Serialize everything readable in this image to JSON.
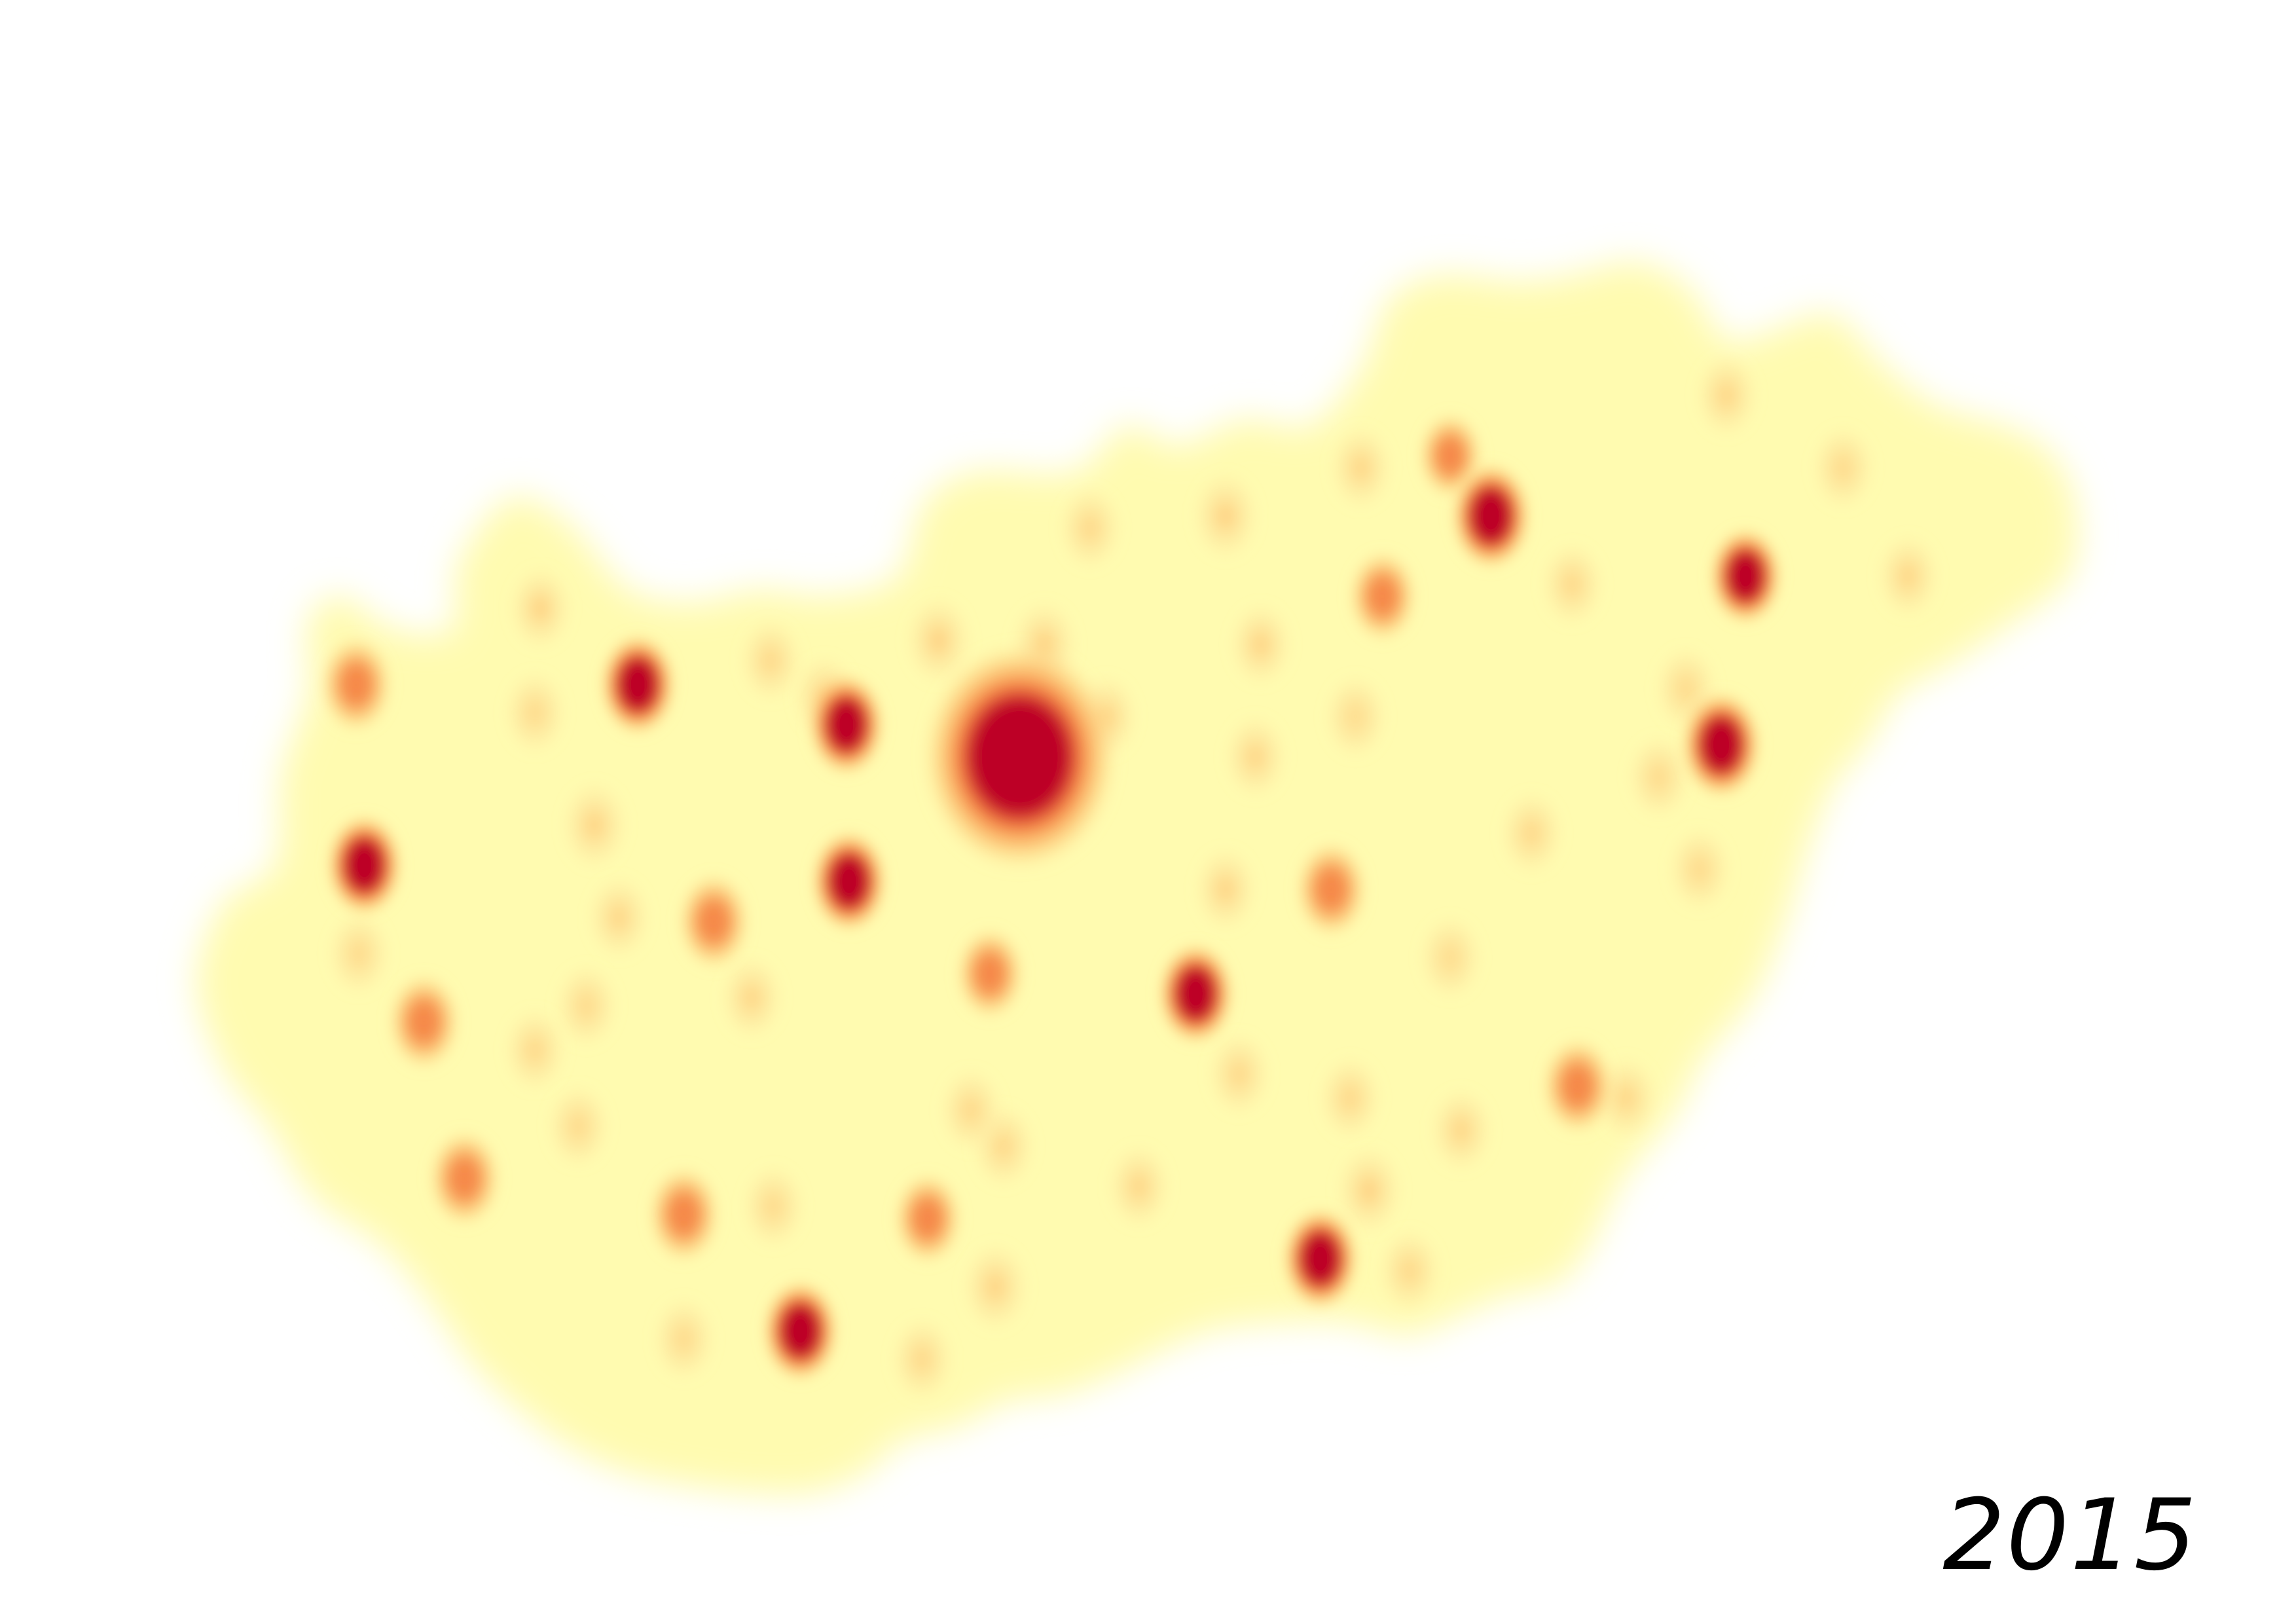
{
  "map": {
    "year": "2015",
    "colors": {
      "background": "#ffffff",
      "base": "#fffbb0",
      "low": "#fde29a",
      "mid": "#fdb663",
      "high": "#f47a3a",
      "peak": "#bd0026"
    },
    "hotspots": [
      {
        "id": "budapest",
        "lon": 19.04,
        "lat": 47.5,
        "intensity": 1.0,
        "size": 2.2
      },
      {
        "id": "gyor",
        "lon": 17.63,
        "lat": 47.68,
        "intensity": 0.95,
        "size": 1.0
      },
      {
        "id": "tatabanya",
        "lon": 18.4,
        "lat": 47.58,
        "intensity": 0.85,
        "size": 1.0
      },
      {
        "id": "szekesfehervar",
        "lon": 18.41,
        "lat": 47.19,
        "intensity": 0.95,
        "size": 1.0
      },
      {
        "id": "miskolc",
        "lon": 20.78,
        "lat": 48.1,
        "intensity": 0.95,
        "size": 1.05
      },
      {
        "id": "nyiregyhaza",
        "lon": 21.72,
        "lat": 47.95,
        "intensity": 0.95,
        "size": 0.95
      },
      {
        "id": "debrecen",
        "lon": 21.63,
        "lat": 47.53,
        "intensity": 0.95,
        "size": 1.05
      },
      {
        "id": "kecskemet",
        "lon": 19.69,
        "lat": 46.91,
        "intensity": 0.95,
        "size": 1.0
      },
      {
        "id": "szeged",
        "lon": 20.15,
        "lat": 46.25,
        "intensity": 0.95,
        "size": 1.0
      },
      {
        "id": "pecs",
        "lon": 18.23,
        "lat": 46.07,
        "intensity": 0.95,
        "size": 1.0
      },
      {
        "id": "sopron",
        "lon": 16.59,
        "lat": 47.68,
        "intensity": 0.7,
        "size": 0.95
      },
      {
        "id": "szombathely",
        "lon": 16.62,
        "lat": 47.23,
        "intensity": 0.85,
        "size": 1.0
      },
      {
        "id": "zalaegerszeg",
        "lon": 16.84,
        "lat": 46.84,
        "intensity": 0.7,
        "size": 0.95
      },
      {
        "id": "nagykanizsa",
        "lon": 16.99,
        "lat": 46.45,
        "intensity": 0.65,
        "size": 0.95
      },
      {
        "id": "kaposvar",
        "lon": 17.8,
        "lat": 46.36,
        "intensity": 0.7,
        "size": 0.95
      },
      {
        "id": "veszprem",
        "lon": 17.91,
        "lat": 47.09,
        "intensity": 0.7,
        "size": 0.95
      },
      {
        "id": "eger",
        "lon": 20.38,
        "lat": 47.9,
        "intensity": 0.65,
        "size": 0.9
      },
      {
        "id": "salgotarjan",
        "lon": 19.8,
        "lat": 48.1,
        "intensity": 0.55,
        "size": 0.85
      },
      {
        "id": "szolnok",
        "lon": 20.19,
        "lat": 47.17,
        "intensity": 0.7,
        "size": 0.95
      },
      {
        "id": "bekescsaba",
        "lon": 21.1,
        "lat": 46.68,
        "intensity": 0.7,
        "size": 0.95
      },
      {
        "id": "szekszard",
        "lon": 18.7,
        "lat": 46.35,
        "intensity": 0.6,
        "size": 0.9
      },
      {
        "id": "dunaujvaros",
        "lon": 18.93,
        "lat": 46.96,
        "intensity": 0.6,
        "size": 0.9
      },
      {
        "id": "hodmezovasarhely",
        "lon": 20.33,
        "lat": 46.42,
        "intensity": 0.55,
        "size": 0.85
      },
      {
        "id": "kazincbarcika",
        "lon": 20.63,
        "lat": 48.25,
        "intensity": 0.6,
        "size": 0.85
      },
      {
        "id": "papa",
        "lon": 17.47,
        "lat": 47.33,
        "intensity": 0.5,
        "size": 0.85
      },
      {
        "id": "esztergom",
        "lon": 18.74,
        "lat": 47.79,
        "intensity": 0.55,
        "size": 0.85
      },
      {
        "id": "vac",
        "lon": 19.13,
        "lat": 47.78,
        "intensity": 0.55,
        "size": 0.85
      },
      {
        "id": "cegled",
        "lon": 19.8,
        "lat": 47.17,
        "intensity": 0.5,
        "size": 0.8
      },
      {
        "id": "gyongyos",
        "lon": 19.93,
        "lat": 47.78,
        "intensity": 0.5,
        "size": 0.8
      },
      {
        "id": "jaszbereny",
        "lon": 19.91,
        "lat": 47.5,
        "intensity": 0.45,
        "size": 0.8
      },
      {
        "id": "baja",
        "lon": 18.95,
        "lat": 46.18,
        "intensity": 0.5,
        "size": 0.85
      },
      {
        "id": "siofok",
        "lon": 18.05,
        "lat": 46.9,
        "intensity": 0.45,
        "size": 0.8
      },
      {
        "id": "mohacs",
        "lon": 18.68,
        "lat": 46.0,
        "intensity": 0.4,
        "size": 0.8
      },
      {
        "id": "oroshaza",
        "lon": 20.67,
        "lat": 46.57,
        "intensity": 0.45,
        "size": 0.8
      },
      {
        "id": "gyula",
        "lon": 21.28,
        "lat": 46.65,
        "intensity": 0.45,
        "size": 0.8
      },
      {
        "id": "karcag",
        "lon": 20.93,
        "lat": 47.31,
        "intensity": 0.4,
        "size": 0.8
      },
      {
        "id": "mateszalka",
        "lon": 22.32,
        "lat": 47.95,
        "intensity": 0.45,
        "size": 0.8
      },
      {
        "id": "satoraljaujhely",
        "lon": 21.65,
        "lat": 48.4,
        "intensity": 0.45,
        "size": 0.8
      },
      {
        "id": "kiskunhalas",
        "lon": 19.48,
        "lat": 46.43,
        "intensity": 0.45,
        "size": 0.8
      },
      {
        "id": "kiskunfelegyhaza",
        "lon": 19.85,
        "lat": 46.71,
        "intensity": 0.4,
        "size": 0.8
      },
      {
        "id": "keszthely",
        "lon": 17.25,
        "lat": 46.77,
        "intensity": 0.4,
        "size": 0.8
      },
      {
        "id": "tata",
        "lon": 18.32,
        "lat": 47.65,
        "intensity": 0.45,
        "size": 0.8
      },
      {
        "id": "mosonmagyarovar",
        "lon": 17.27,
        "lat": 47.87,
        "intensity": 0.55,
        "size": 0.8
      },
      {
        "id": "ajka",
        "lon": 17.56,
        "lat": 47.1,
        "intensity": 0.45,
        "size": 0.8
      },
      {
        "id": "tiszaujvaros",
        "lon": 21.08,
        "lat": 47.93,
        "intensity": 0.4,
        "size": 0.8
      },
      {
        "id": "hajduboszormeny",
        "lon": 21.5,
        "lat": 47.67,
        "intensity": 0.35,
        "size": 0.8
      },
      {
        "id": "berettyoujfalu",
        "lon": 21.55,
        "lat": 47.22,
        "intensity": 0.35,
        "size": 0.8
      },
      {
        "id": "mako",
        "lon": 20.48,
        "lat": 46.22,
        "intensity": 0.4,
        "size": 0.8
      },
      {
        "id": "szentes",
        "lon": 20.26,
        "lat": 46.65,
        "intensity": 0.4,
        "size": 0.8
      },
      {
        "id": "kalocsa",
        "lon": 18.98,
        "lat": 46.53,
        "intensity": 0.4,
        "size": 0.8
      },
      {
        "id": "paks",
        "lon": 18.86,
        "lat": 46.62,
        "intensity": 0.4,
        "size": 0.8
      },
      {
        "id": "komarom",
        "lon": 18.12,
        "lat": 47.74,
        "intensity": 0.4,
        "size": 0.8
      },
      {
        "id": "godollo",
        "lon": 19.36,
        "lat": 47.6,
        "intensity": 0.5,
        "size": 0.8
      },
      {
        "id": "ozd",
        "lon": 20.3,
        "lat": 48.22,
        "intensity": 0.45,
        "size": 0.8
      },
      {
        "id": "balassagyarmat",
        "lon": 19.3,
        "lat": 48.07,
        "intensity": 0.4,
        "size": 0.8
      },
      {
        "id": "marcali",
        "lon": 17.41,
        "lat": 46.58,
        "intensity": 0.35,
        "size": 0.8
      },
      {
        "id": "szigetvar",
        "lon": 17.8,
        "lat": 46.05,
        "intensity": 0.35,
        "size": 0.8
      },
      {
        "id": "dombovar",
        "lon": 18.13,
        "lat": 46.38,
        "intensity": 0.35,
        "size": 0.8
      },
      {
        "id": "tapolca",
        "lon": 17.44,
        "lat": 46.88,
        "intensity": 0.35,
        "size": 0.8
      },
      {
        "id": "kormend",
        "lon": 16.6,
        "lat": 47.01,
        "intensity": 0.35,
        "size": 0.8
      },
      {
        "id": "csorna",
        "lon": 17.25,
        "lat": 47.61,
        "intensity": 0.35,
        "size": 0.8
      },
      {
        "id": "kisvarda",
        "lon": 22.08,
        "lat": 48.22,
        "intensity": 0.35,
        "size": 0.8
      },
      {
        "id": "heves",
        "lon": 20.28,
        "lat": 47.6,
        "intensity": 0.3,
        "size": 0.8
      },
      {
        "id": "mezotur",
        "lon": 20.63,
        "lat": 47.0,
        "intensity": 0.3,
        "size": 0.8
      },
      {
        "id": "hajduszoboszlo",
        "lon": 21.4,
        "lat": 47.45,
        "intensity": 0.35,
        "size": 0.8
      }
    ]
  }
}
